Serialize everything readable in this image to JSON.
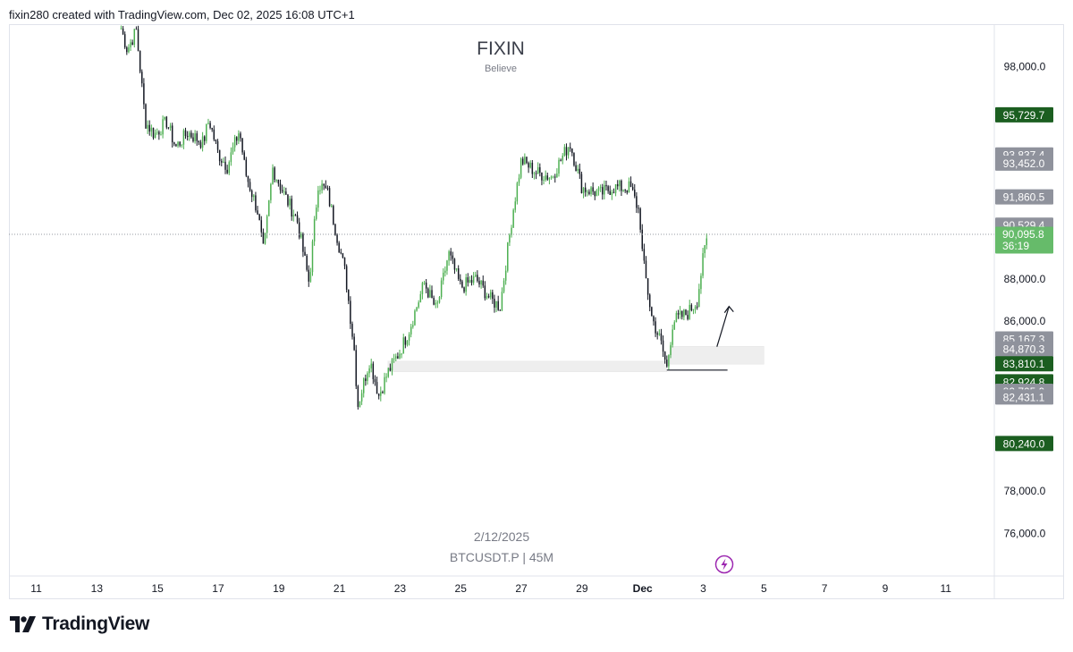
{
  "header": {
    "text": "fixin280 created with TradingView.com, Dec 02, 2025 16:08 UTC+1"
  },
  "watermark": {
    "title": "FIXIN",
    "subtitle": "Believe",
    "date": "2/12/2025",
    "symbol": "BTCUSDT.P | 45M"
  },
  "footer": {
    "brand": "TradingView"
  },
  "colors": {
    "up": "#4caf50",
    "down": "#131722",
    "price_up_bg": "#66bb6a",
    "dark_green": "#1b5e20",
    "gray_label": "#8f929c",
    "zone": "#eeeeee"
  },
  "chart_data": {
    "type": "candlestick",
    "ylim": [
      74000,
      100000
    ],
    "y_ticks": [
      "98,000.0",
      "88,000.0",
      "86,000.0",
      "78,000.0",
      "76,000.0"
    ],
    "y_tick_values": [
      98000,
      88000,
      86000,
      78000,
      76000
    ],
    "x_ticks": [
      "11",
      "13",
      "15",
      "17",
      "19",
      "21",
      "23",
      "25",
      "27",
      "29",
      "Dec",
      "3",
      "5",
      "7",
      "9",
      "11"
    ],
    "x_tick_days": [
      11,
      13,
      15,
      17,
      19,
      21,
      23,
      25,
      27,
      29,
      31,
      33,
      35,
      37,
      39,
      41
    ],
    "x_day_range": [
      10.1,
      42.6
    ],
    "current_price": {
      "label": "90,095.8",
      "countdown": "36:19",
      "value": 90095.8
    },
    "price_labels": [
      {
        "label": "95,729.7",
        "value": 95729.7,
        "style": "dark"
      },
      {
        "label": "93,837.4",
        "value": 93837.4,
        "style": "gray"
      },
      {
        "label": "93,452.0",
        "value": 93452.0,
        "style": "gray"
      },
      {
        "label": "91,860.5",
        "value": 91860.5,
        "style": "gray"
      },
      {
        "label": "90,529.4",
        "value": 90529.4,
        "style": "gray"
      },
      {
        "label": "85,167.3",
        "value": 85167.3,
        "style": "gray"
      },
      {
        "label": "84,870.3",
        "value": 84700,
        "style": "gray"
      },
      {
        "label": "83,810.1",
        "value": 84000,
        "style": "dark"
      },
      {
        "label": "82,924.8",
        "value": 83150,
        "style": "dark"
      },
      {
        "label": "82,705.9",
        "value": 82700,
        "style": "gray"
      },
      {
        "label": "82,431.1",
        "value": 82431.1,
        "style": "gray"
      },
      {
        "label": "80,240.0",
        "value": 80240.0,
        "style": "dark"
      }
    ],
    "path": [
      [
        13.8,
        99800
      ],
      [
        14.0,
        98800
      ],
      [
        14.3,
        99700
      ],
      [
        14.6,
        95400
      ],
      [
        14.9,
        94800
      ],
      [
        15.3,
        95400
      ],
      [
        15.6,
        94200
      ],
      [
        16.0,
        94900
      ],
      [
        16.5,
        94400
      ],
      [
        16.7,
        95500
      ],
      [
        17.0,
        93900
      ],
      [
        17.3,
        93300
      ],
      [
        17.7,
        95000
      ],
      [
        17.9,
        93000
      ],
      [
        18.3,
        91200
      ],
      [
        18.5,
        89200
      ],
      [
        18.8,
        93200
      ],
      [
        19.2,
        91900
      ],
      [
        19.6,
        90800
      ],
      [
        20.0,
        87800
      ],
      [
        20.3,
        92500
      ],
      [
        20.6,
        92100
      ],
      [
        21.2,
        88200
      ],
      [
        21.5,
        84500
      ],
      [
        21.6,
        82000
      ],
      [
        22.0,
        84200
      ],
      [
        22.3,
        82500
      ],
      [
        22.6,
        83600
      ],
      [
        23.0,
        84600
      ],
      [
        23.3,
        85600
      ],
      [
        23.8,
        87800
      ],
      [
        24.2,
        86500
      ],
      [
        24.6,
        89200
      ],
      [
        25.0,
        87600
      ],
      [
        25.5,
        88000
      ],
      [
        26.0,
        87000
      ],
      [
        26.3,
        86700
      ],
      [
        26.7,
        91000
      ],
      [
        27.0,
        93600
      ],
      [
        27.5,
        93000
      ],
      [
        28.0,
        92800
      ],
      [
        28.6,
        94400
      ],
      [
        29.0,
        92300
      ],
      [
        29.6,
        92000
      ],
      [
        30.0,
        92300
      ],
      [
        30.6,
        92300
      ],
      [
        30.9,
        91100
      ],
      [
        31.0,
        89000
      ],
      [
        31.3,
        86200
      ],
      [
        31.6,
        85000
      ],
      [
        31.8,
        83800
      ],
      [
        32.0,
        86000
      ],
      [
        32.5,
        86400
      ],
      [
        32.8,
        87000
      ],
      [
        33.0,
        89000
      ],
      [
        33.15,
        90100
      ]
    ],
    "zones": [
      {
        "x0": 22.6,
        "x1": 31.8,
        "y0": 83620,
        "y1": 84120
      },
      {
        "x0": 31.9,
        "x1": 35.0,
        "y0": 83980,
        "y1": 84820
      }
    ],
    "support_line": {
      "x0": 31.8,
      "x1": 33.8,
      "y": 83700
    },
    "arrow": [
      [
        33.45,
        84800
      ],
      [
        33.6,
        85500
      ],
      [
        33.85,
        86700
      ]
    ]
  }
}
